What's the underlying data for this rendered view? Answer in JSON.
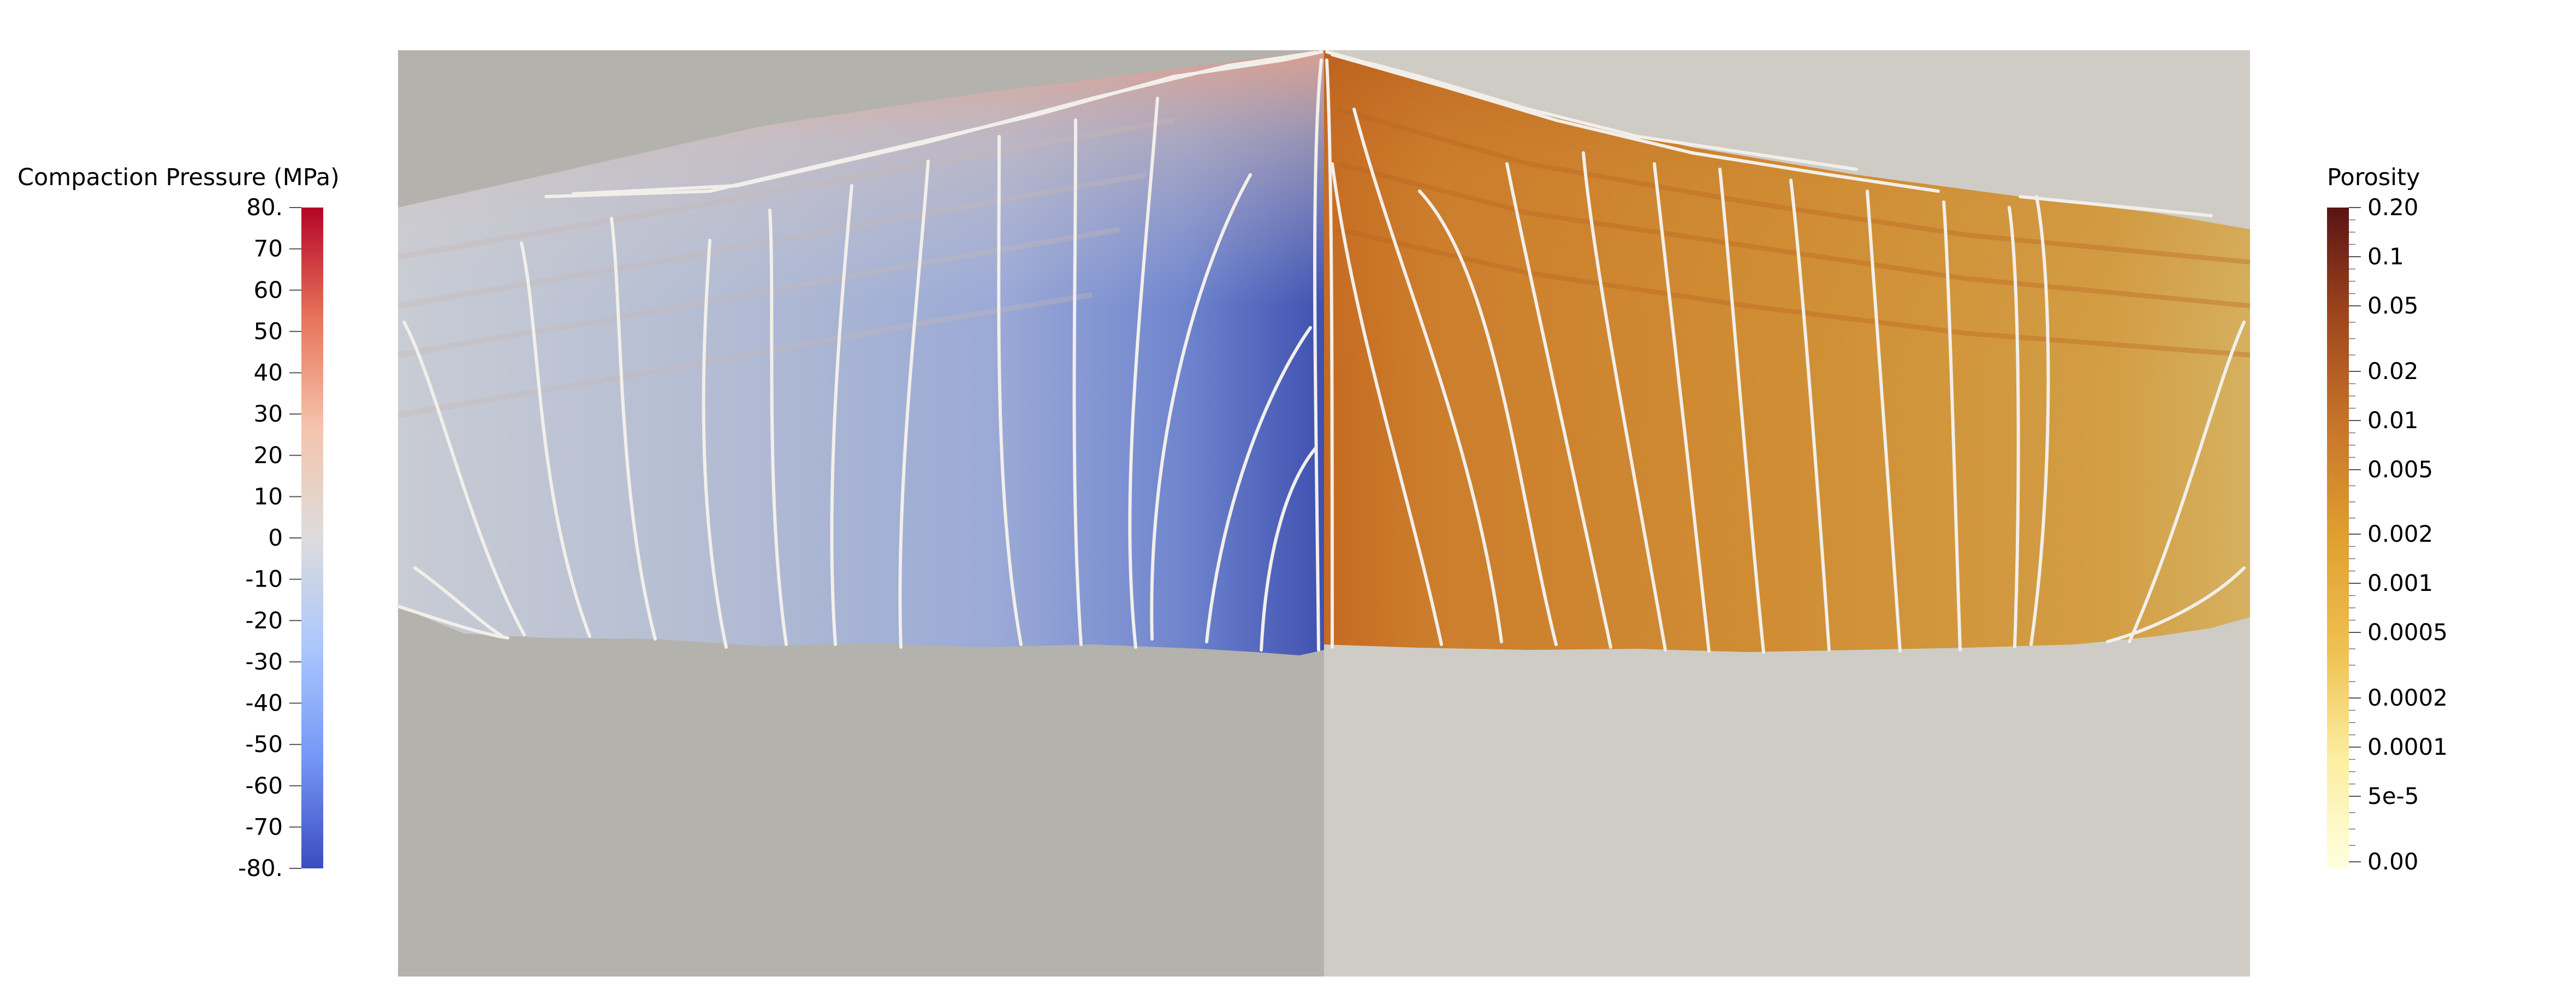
{
  "colorbars": {
    "left": {
      "title": "Compaction Pressure (MPa)",
      "min": -80,
      "max": 80,
      "ticks": [
        "80.",
        "70",
        "60",
        "50",
        "40",
        "30",
        "20",
        "10",
        "0",
        "-10",
        "-20",
        "-30",
        "-40",
        "-50",
        "-60",
        "-70",
        "-80."
      ],
      "colors": [
        "#3b4cc0",
        "#7597f6",
        "#aac7fd",
        "#dddcdc",
        "#f5c4ad",
        "#e7745b",
        "#b40426"
      ]
    },
    "right": {
      "title": "Porosity",
      "scale": "log",
      "ticks": [
        "0.20",
        "0.1",
        "0.05",
        "0.02",
        "0.01",
        "0.005",
        "0.002",
        "0.001",
        "0.0005",
        "0.0002",
        "0.0001",
        "5e-5",
        "0.00"
      ],
      "colors": [
        "#ffffe0",
        "#fbeea0",
        "#efc050",
        "#e0a030",
        "#c8762a",
        "#a0461e",
        "#5a1414"
      ]
    }
  },
  "panels": {
    "left_field": "Compaction Pressure",
    "right_field": "Porosity"
  },
  "colors": {
    "left_background": "#b4b2ac",
    "right_background": "#cfccc6",
    "streamline": "#f2efea"
  }
}
